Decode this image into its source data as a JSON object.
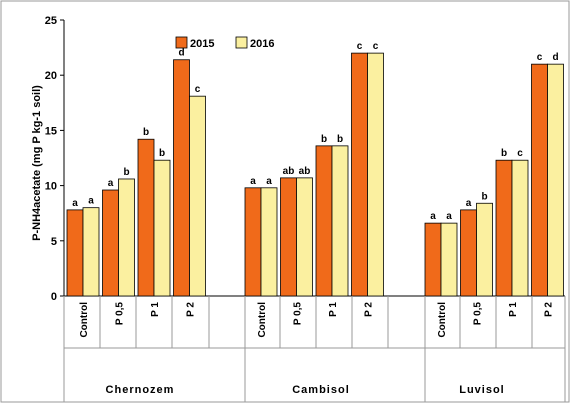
{
  "chart_data": {
    "type": "bar",
    "ylabel": "P-NH4acetate (mg P kg-1 soil)",
    "ylim": [
      0,
      25
    ],
    "yticks": [
      0,
      5,
      10,
      15,
      20,
      25
    ],
    "grid": false,
    "legend_position": "top-center",
    "groups": [
      {
        "name": "Chernozem",
        "categories": [
          "Control",
          "P 0,5",
          "P 1",
          "P 2"
        ]
      },
      {
        "name": "Cambisol",
        "categories": [
          "Control",
          "P 0,5",
          "P 1",
          "P 2"
        ]
      },
      {
        "name": "Luvisol",
        "categories": [
          "Control",
          "P 0,5",
          "P 1",
          "P 2"
        ]
      }
    ],
    "series": [
      {
        "name": "2015",
        "color": "#f06a1a",
        "values": [
          7.8,
          9.6,
          14.2,
          21.4,
          9.8,
          10.7,
          13.6,
          22.0,
          6.6,
          7.8,
          12.3,
          21.0
        ],
        "labels": [
          "a",
          "a",
          "b",
          "d",
          "a",
          "ab",
          "b",
          "c",
          "a",
          "a",
          "b",
          "c"
        ]
      },
      {
        "name": "2016",
        "color": "#fbf0a0",
        "values": [
          8.0,
          10.6,
          12.3,
          18.1,
          9.8,
          10.7,
          13.6,
          22.0,
          6.6,
          8.4,
          12.3,
          21.0
        ],
        "labels": [
          "a",
          "b",
          "b",
          "c",
          "a",
          "ab",
          "b",
          "c",
          "a",
          "b",
          "c",
          "d"
        ]
      }
    ]
  }
}
